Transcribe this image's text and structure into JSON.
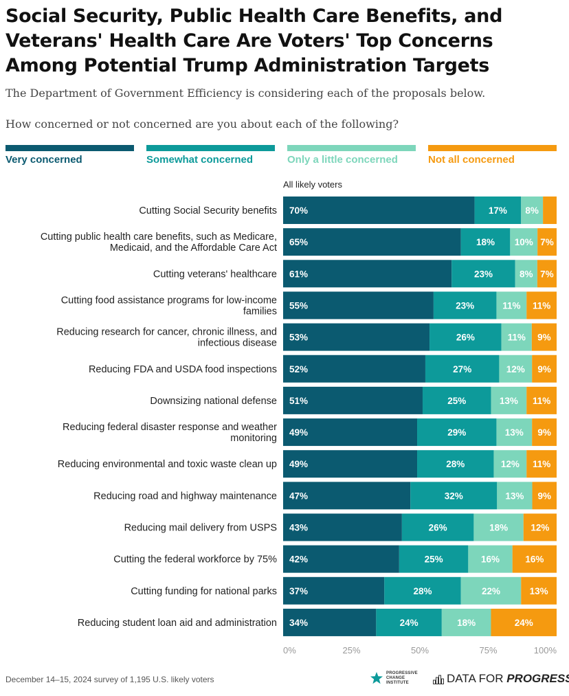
{
  "chart_data": {
    "type": "bar",
    "orientation": "horizontal",
    "stacked": true,
    "title": "Social Security, Public Health Care Benefits, and Veterans' Health Care Are Voters' Top Concerns Among Potential Trump Administration Targets",
    "subtitle": "The Department of Government Efficiency is considering each of the proposals below.",
    "question": "How concerned or not concerned are you about each of the following?",
    "group_label": "All likely voters",
    "xlim": [
      0,
      100
    ],
    "x_ticks": [
      "0%",
      "25%",
      "50%",
      "75%",
      "100%"
    ],
    "legend_placement": "top",
    "categories": [
      [
        "Cutting Social Security benefits"
      ],
      [
        "Cutting public health care benefits, such as Medicare,",
        "Medicaid, and the Affordable Care Act"
      ],
      [
        "Cutting veterans' healthcare"
      ],
      [
        "Cutting food assistance programs for low-income",
        "families"
      ],
      [
        "Reducing research for cancer, chronic illness, and",
        "infectious disease"
      ],
      [
        "Reducing FDA and USDA food inspections"
      ],
      [
        "Downsizing national defense"
      ],
      [
        "Reducing federal disaster response and weather",
        "monitoring"
      ],
      [
        "Reducing environmental and toxic waste clean up"
      ],
      [
        "Reducing road and highway maintenance"
      ],
      [
        "Reducing mail delivery from USPS"
      ],
      [
        "Cutting the federal workforce by 75%"
      ],
      [
        "Cutting funding for national parks"
      ],
      [
        "Reducing student loan aid and administration"
      ]
    ],
    "series": [
      {
        "name": "Very concerned",
        "color": "#0b5a70",
        "text_color": "#ffffff",
        "values": [
          70,
          65,
          61,
          55,
          53,
          52,
          51,
          49,
          49,
          47,
          43,
          42,
          37,
          34
        ],
        "labels": [
          "70%",
          "65%",
          "61%",
          "55%",
          "53%",
          "52%",
          "51%",
          "49%",
          "49%",
          "47%",
          "43%",
          "42%",
          "37%",
          "34%"
        ]
      },
      {
        "name": "Somewhat concerned",
        "color": "#0d9a9a",
        "text_color": "#ffffff",
        "values": [
          17,
          18,
          23,
          23,
          26,
          27,
          25,
          29,
          28,
          32,
          26,
          25,
          28,
          24
        ],
        "labels": [
          "17%",
          "18%",
          "23%",
          "23%",
          "26%",
          "27%",
          "25%",
          "29%",
          "28%",
          "32%",
          "26%",
          "25%",
          "28%",
          "24%"
        ]
      },
      {
        "name": "Only a little concerned",
        "color": "#7dd6bb",
        "text_color": "#ffffff",
        "values": [
          8,
          10,
          8,
          11,
          11,
          12,
          13,
          13,
          12,
          13,
          18,
          16,
          22,
          18
        ],
        "labels": [
          "8%",
          "10%",
          "8%",
          "11%",
          "11%",
          "12%",
          "13%",
          "13%",
          "12%",
          "13%",
          "18%",
          "16%",
          "22%",
          "18%"
        ]
      },
      {
        "name": "Not all concerned",
        "color": "#f59a10",
        "text_color": "#ffffff",
        "values": [
          5,
          7,
          7,
          11,
          9,
          9,
          11,
          9,
          11,
          9,
          12,
          16,
          13,
          24
        ],
        "labels": [
          "",
          "7%",
          "7%",
          "11%",
          "9%",
          "9%",
          "11%",
          "9%",
          "11%",
          "9%",
          "12%",
          "16%",
          "13%",
          "24%"
        ]
      }
    ]
  },
  "legend_label_colors": [
    "#0b5a70",
    "#0d9a9a",
    "#7dd6bb",
    "#f59a10"
  ],
  "footer": {
    "note": "December 14–15, 2024 survey of 1,195 U.S. likely voters",
    "pci_logo_lines": [
      "PROGRESSIVE",
      "CHANGE",
      "INSTITUTE"
    ],
    "dfp_logo_regular": "DATA FOR ",
    "dfp_logo_bold": "PROGRESS",
    "icons": [
      "star-icon",
      "bar-chart-icon"
    ]
  }
}
